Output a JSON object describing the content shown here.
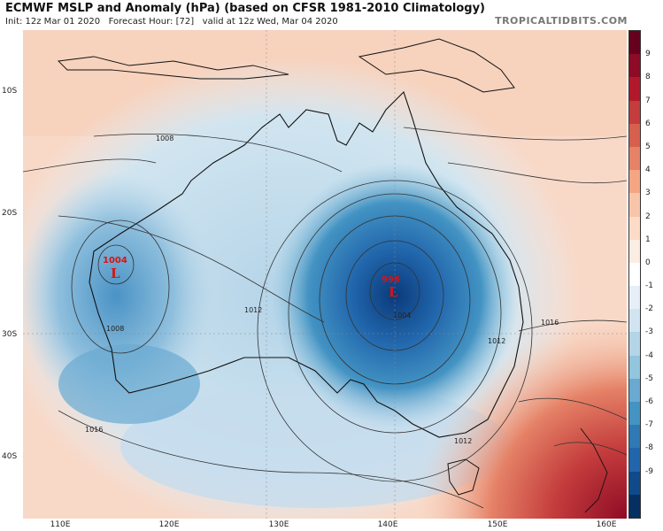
{
  "header": {
    "title": "ECMWF MSLP and Anomaly (hPa) (based on CFSR 1981-2010 Climatology)",
    "init": "Init: 12z Mar 01 2020",
    "forecast_hour": "Forecast Hour: [72]",
    "valid": "valid at 12z Wed, Mar 04 2020",
    "brand": "TROPICALTIDBITS.COM"
  },
  "axes": {
    "lat_labels": [
      "10S",
      "20S",
      "30S",
      "40S"
    ],
    "lon_labels": [
      "110E",
      "120E",
      "130E",
      "140E",
      "150E",
      "160E"
    ]
  },
  "colorbar": {
    "labels": [
      "9",
      "8",
      "7",
      "6",
      "5",
      "4",
      "3",
      "2",
      "1",
      "0",
      "-1",
      "-2",
      "-3",
      "-4",
      "-5",
      "-6",
      "-7",
      "-8",
      "-9"
    ],
    "colors": [
      "#67001f",
      "#8e0b25",
      "#b2182b",
      "#c43c3c",
      "#d6604d",
      "#e58267",
      "#f4a582",
      "#f7c5aa",
      "#fddbc7",
      "#fbece4",
      "#ffffff",
      "#e6eff7",
      "#d1e5f0",
      "#b4d4e8",
      "#92c5de",
      "#6aa9d1",
      "#4393c3",
      "#2f79b5",
      "#2166ac",
      "#104a8a",
      "#053061"
    ]
  },
  "lows": [
    {
      "pressure": "1004",
      "letter": "L"
    },
    {
      "pressure": "996",
      "letter": "L"
    }
  ],
  "isobar_labels": [
    "1008",
    "1004",
    "1012",
    "1008",
    "1012",
    "1016",
    "1012",
    "1016",
    "1012"
  ]
}
